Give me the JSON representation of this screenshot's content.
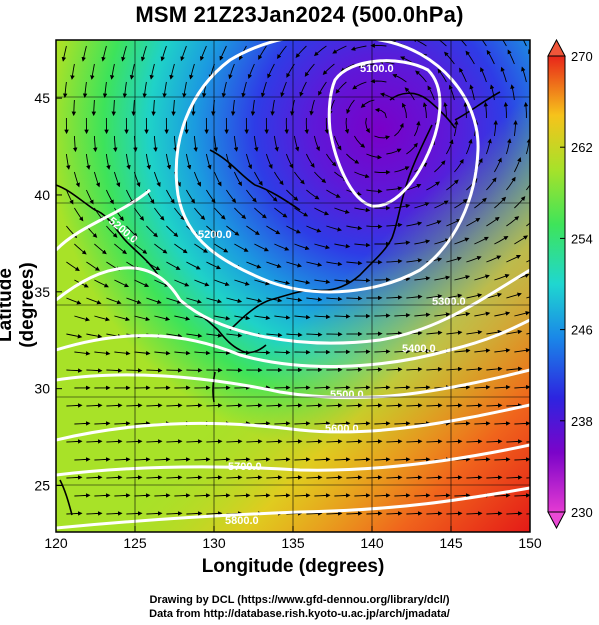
{
  "title": "MSM 21Z23Jan2024 (500.0hPa)",
  "x_axis": {
    "label": "Longitude (degrees)",
    "ticks": [
      "120",
      "125",
      "130",
      "135",
      "140",
      "145",
      "150"
    ],
    "range": [
      120,
      150
    ]
  },
  "y_axis": {
    "label": "Latitude  (degrees)",
    "ticks": [
      "25",
      "30",
      "35",
      "40",
      "45"
    ],
    "range": [
      22.6,
      48
    ]
  },
  "colorbar": {
    "ticks": [
      "270",
      "262",
      "254",
      "246",
      "238",
      "230"
    ],
    "range": [
      230,
      270
    ]
  },
  "contours": [
    {
      "label": "5100.0"
    },
    {
      "label": "5200.0"
    },
    {
      "label": "5200.0"
    },
    {
      "label": "5300.0"
    },
    {
      "label": "5400.0"
    },
    {
      "label": "5500.0"
    },
    {
      "label": "5600.0"
    },
    {
      "label": "5700.0"
    },
    {
      "label": "5800.0"
    }
  ],
  "credits": {
    "line1": "Drawing by DCL (https://www.gfd-dennou.org/library/dcl/)",
    "line2": "Data from http://database.rish.kyoto-u.ac.jp/arch/jmadata/"
  },
  "colors": {
    "cold": "#7a00c8",
    "warm": "#e8201a",
    "contour": "#ffffff",
    "streamline": "#000000"
  }
}
